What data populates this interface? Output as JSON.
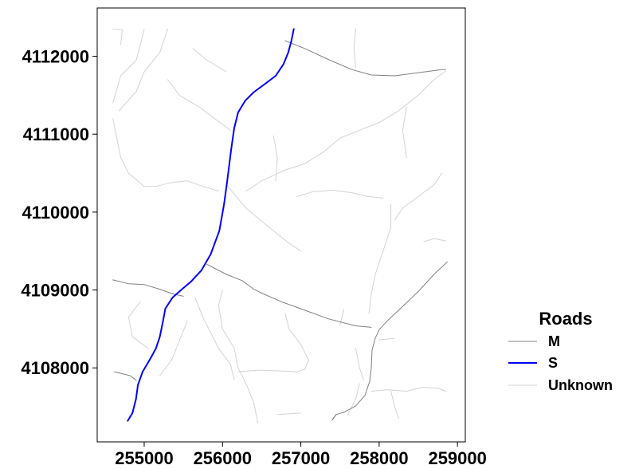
{
  "map": {
    "x_range": [
      254400,
      259100
    ],
    "y_range": [
      4107050,
      4112620
    ],
    "x_ticks": [
      {
        "value": 255000,
        "label": "255000"
      },
      {
        "value": 256000,
        "label": "256000"
      },
      {
        "value": 257000,
        "label": "257000"
      },
      {
        "value": 258000,
        "label": "258000"
      },
      {
        "value": 259000,
        "label": "259000"
      }
    ],
    "y_ticks": [
      {
        "value": 4108000,
        "label": "4108000"
      },
      {
        "value": 4109000,
        "label": "4109000"
      },
      {
        "value": 4110000,
        "label": "4110000"
      },
      {
        "value": 4111000,
        "label": "4111000"
      },
      {
        "value": 4112000,
        "label": "4112000"
      }
    ]
  },
  "legend": {
    "title": "Roads",
    "items": [
      {
        "label": "M",
        "color": "#808080",
        "width": 1
      },
      {
        "label": "S",
        "color": "#0000ff",
        "width": 2
      },
      {
        "label": "Unknown",
        "color": "#d3d3d3",
        "width": 1
      }
    ]
  },
  "roads": {
    "S": [
      [
        [
          254790,
          4107320
        ],
        [
          254850,
          4107420
        ],
        [
          254895,
          4107600
        ],
        [
          254920,
          4107780
        ],
        [
          254980,
          4107950
        ],
        [
          255080,
          4108120
        ],
        [
          255150,
          4108250
        ],
        [
          255200,
          4108400
        ],
        [
          255240,
          4108600
        ],
        [
          255270,
          4108760
        ],
        [
          255360,
          4108900
        ],
        [
          255470,
          4109000
        ],
        [
          255600,
          4109110
        ],
        [
          255730,
          4109250
        ],
        [
          255850,
          4109460
        ],
        [
          255960,
          4109760
        ],
        [
          256020,
          4110100
        ],
        [
          256060,
          4110400
        ],
        [
          256110,
          4110800
        ],
        [
          256150,
          4111080
        ],
        [
          256200,
          4111280
        ],
        [
          256290,
          4111430
        ],
        [
          256400,
          4111540
        ],
        [
          256550,
          4111650
        ],
        [
          256680,
          4111750
        ],
        [
          256780,
          4111900
        ],
        [
          256840,
          4112050
        ],
        [
          256880,
          4112200
        ],
        [
          256910,
          4112350
        ]
      ]
    ],
    "M": [
      [
        [
          256800,
          4112200
        ],
        [
          257050,
          4112100
        ],
        [
          257350,
          4111960
        ],
        [
          257650,
          4111830
        ],
        [
          257900,
          4111760
        ],
        [
          258200,
          4111750
        ],
        [
          258500,
          4111790
        ],
        [
          258800,
          4111830
        ],
        [
          258850,
          4111830
        ]
      ],
      [
        [
          254600,
          4109130
        ],
        [
          254800,
          4109080
        ],
        [
          255000,
          4109070
        ],
        [
          255200,
          4109010
        ],
        [
          255360,
          4108950
        ],
        [
          255500,
          4108920
        ]
      ],
      [
        [
          255800,
          4109330
        ],
        [
          256050,
          4109200
        ],
        [
          256250,
          4109120
        ],
        [
          256400,
          4109010
        ],
        [
          256500,
          4108960
        ],
        [
          256750,
          4108850
        ],
        [
          257050,
          4108740
        ],
        [
          257350,
          4108630
        ],
        [
          257700,
          4108540
        ],
        [
          257900,
          4108520
        ]
      ],
      [
        [
          258870,
          4109360
        ],
        [
          258700,
          4109200
        ],
        [
          258500,
          4108980
        ],
        [
          258300,
          4108790
        ],
        [
          258100,
          4108600
        ],
        [
          258000,
          4108490
        ],
        [
          257950,
          4108380
        ],
        [
          257910,
          4108230
        ],
        [
          257900,
          4108000
        ],
        [
          257880,
          4107830
        ],
        [
          257820,
          4107650
        ],
        [
          257700,
          4107510
        ],
        [
          257550,
          4107430
        ],
        [
          257450,
          4107400
        ],
        [
          257400,
          4107330
        ]
      ],
      [
        [
          254620,
          4107950
        ],
        [
          254820,
          4107900
        ],
        [
          254900,
          4107840
        ]
      ],
      [
        [
          257400,
          4107330
        ],
        [
          257450,
          4107400
        ]
      ]
    ],
    "Unknown": [
      [
        [
          254600,
          4112350
        ],
        [
          254720,
          4112340
        ],
        [
          254700,
          4112150
        ]
      ],
      [
        [
          255000,
          4112350
        ],
        [
          254950,
          4112150
        ],
        [
          254900,
          4111950
        ],
        [
          254700,
          4111750
        ],
        [
          254600,
          4111400
        ]
      ],
      [
        [
          254600,
          4111200
        ],
        [
          254650,
          4110950
        ],
        [
          254700,
          4110700
        ],
        [
          254800,
          4110500
        ],
        [
          255000,
          4110330
        ],
        [
          255150,
          4110330
        ],
        [
          255350,
          4110380
        ],
        [
          255550,
          4110400
        ],
        [
          255750,
          4110330
        ],
        [
          255950,
          4110270
        ]
      ],
      [
        [
          255300,
          4112350
        ],
        [
          255200,
          4112050
        ],
        [
          255000,
          4111800
        ],
        [
          254900,
          4111550
        ],
        [
          254680,
          4111300
        ]
      ],
      [
        [
          255300,
          4111700
        ],
        [
          255450,
          4111500
        ],
        [
          255700,
          4111350
        ],
        [
          255900,
          4111200
        ],
        [
          256100,
          4111050
        ]
      ],
      [
        [
          255620,
          4112100
        ],
        [
          255800,
          4111950
        ],
        [
          256050,
          4111800
        ]
      ],
      [
        [
          256050,
          4110350
        ],
        [
          256300,
          4110050
        ],
        [
          256600,
          4109800
        ],
        [
          256850,
          4109600
        ],
        [
          257000,
          4109500
        ]
      ],
      [
        [
          256300,
          4110270
        ],
        [
          256500,
          4110400
        ],
        [
          256800,
          4110540
        ],
        [
          257050,
          4110620
        ],
        [
          257300,
          4110780
        ],
        [
          257500,
          4110950
        ],
        [
          257750,
          4111050
        ],
        [
          258000,
          4111150
        ],
        [
          258250,
          4111300
        ],
        [
          258500,
          4111500
        ],
        [
          258700,
          4111700
        ],
        [
          258850,
          4111810
        ]
      ],
      [
        [
          256650,
          4110980
        ],
        [
          256700,
          4110700
        ],
        [
          256680,
          4110400
        ]
      ],
      [
        [
          256950,
          4110200
        ],
        [
          257150,
          4110260
        ],
        [
          257400,
          4110280
        ],
        [
          257650,
          4110250
        ],
        [
          257850,
          4110200
        ],
        [
          258050,
          4110180
        ]
      ],
      [
        [
          258150,
          4110100
        ],
        [
          258150,
          4109800
        ],
        [
          258050,
          4109500
        ],
        [
          257950,
          4109200
        ],
        [
          257900,
          4108950
        ],
        [
          257870,
          4108700
        ]
      ],
      [
        [
          257700,
          4112350
        ],
        [
          257680,
          4112100
        ],
        [
          257700,
          4111850
        ]
      ],
      [
        [
          258350,
          4111350
        ],
        [
          258300,
          4111050
        ],
        [
          258350,
          4110700
        ]
      ],
      [
        [
          258800,
          4110500
        ],
        [
          258700,
          4110350
        ],
        [
          258500,
          4110200
        ],
        [
          258300,
          4110050
        ],
        [
          258200,
          4109900
        ]
      ],
      [
        [
          258570,
          4109620
        ],
        [
          258700,
          4109660
        ],
        [
          258850,
          4109630
        ]
      ],
      [
        [
          255650,
          4108900
        ],
        [
          255750,
          4108650
        ],
        [
          255850,
          4108450
        ],
        [
          255950,
          4108250
        ],
        [
          256100,
          4108050
        ],
        [
          256150,
          4107850
        ]
      ],
      [
        [
          255550,
          4108600
        ],
        [
          255450,
          4108350
        ],
        [
          255350,
          4108100
        ],
        [
          255200,
          4107900
        ]
      ],
      [
        [
          254950,
          4108850
        ],
        [
          254800,
          4108650
        ],
        [
          254850,
          4108400
        ],
        [
          255050,
          4108250
        ]
      ],
      [
        [
          256000,
          4109000
        ],
        [
          255950,
          4108800
        ],
        [
          256000,
          4108500
        ],
        [
          256150,
          4108250
        ],
        [
          256200,
          4108000
        ],
        [
          256300,
          4107800
        ],
        [
          256400,
          4107550
        ],
        [
          256450,
          4107300
        ]
      ],
      [
        [
          256200,
          4107950
        ],
        [
          256450,
          4107970
        ],
        [
          256750,
          4107960
        ],
        [
          256950,
          4107950
        ],
        [
          257050,
          4107980
        ],
        [
          257100,
          4108100
        ],
        [
          257000,
          4108300
        ],
        [
          256850,
          4108500
        ],
        [
          256800,
          4108700
        ]
      ],
      [
        [
          256700,
          4107400
        ],
        [
          257000,
          4107420
        ]
      ],
      [
        [
          257900,
          4107700
        ],
        [
          258100,
          4107720
        ],
        [
          258350,
          4107700
        ],
        [
          258550,
          4107750
        ],
        [
          258750,
          4107740
        ],
        [
          258850,
          4107700
        ]
      ],
      [
        [
          258150,
          4107700
        ],
        [
          258200,
          4107500
        ],
        [
          258250,
          4107350
        ]
      ],
      [
        [
          257600,
          4107400
        ],
        [
          257700,
          4107600
        ],
        [
          257750,
          4107800
        ]
      ],
      [
        [
          258000,
          4108360
        ],
        [
          258200,
          4108380
        ]
      ],
      [
        [
          257700,
          4108250
        ],
        [
          257750,
          4108000
        ],
        [
          257800,
          4107850
        ]
      ],
      [
        [
          257500,
          4108550
        ],
        [
          257550,
          4108750
        ]
      ]
    ]
  }
}
